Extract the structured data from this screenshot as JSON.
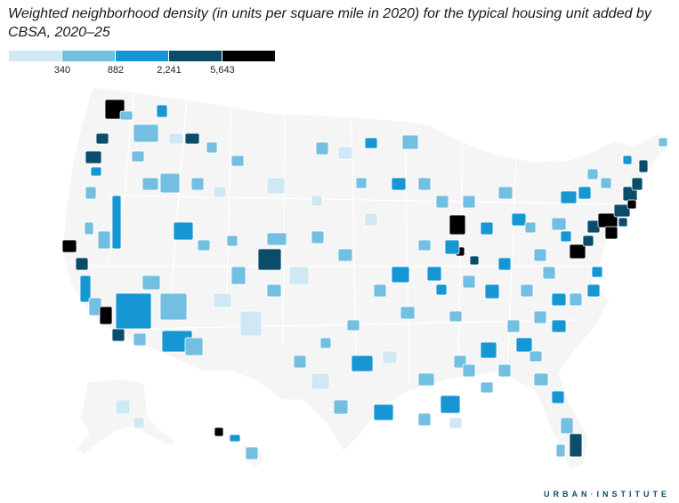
{
  "title": "Weighted neighborhood density (in units per square mile in 2020) for the typical housing unit added by CBSA, 2020–25",
  "legend": {
    "colors": [
      "#cfe8f3",
      "#73bfe2",
      "#1696d2",
      "#0a4c6a",
      "#000000"
    ],
    "ticks": [
      "340",
      "882",
      "2,241",
      "5,643"
    ]
  },
  "base_color": "#f5f5f5",
  "boundary_color": "#ffffff",
  "branding": {
    "word1": "URBAN",
    "separator": "·",
    "word2": "INSTITUTE"
  }
}
